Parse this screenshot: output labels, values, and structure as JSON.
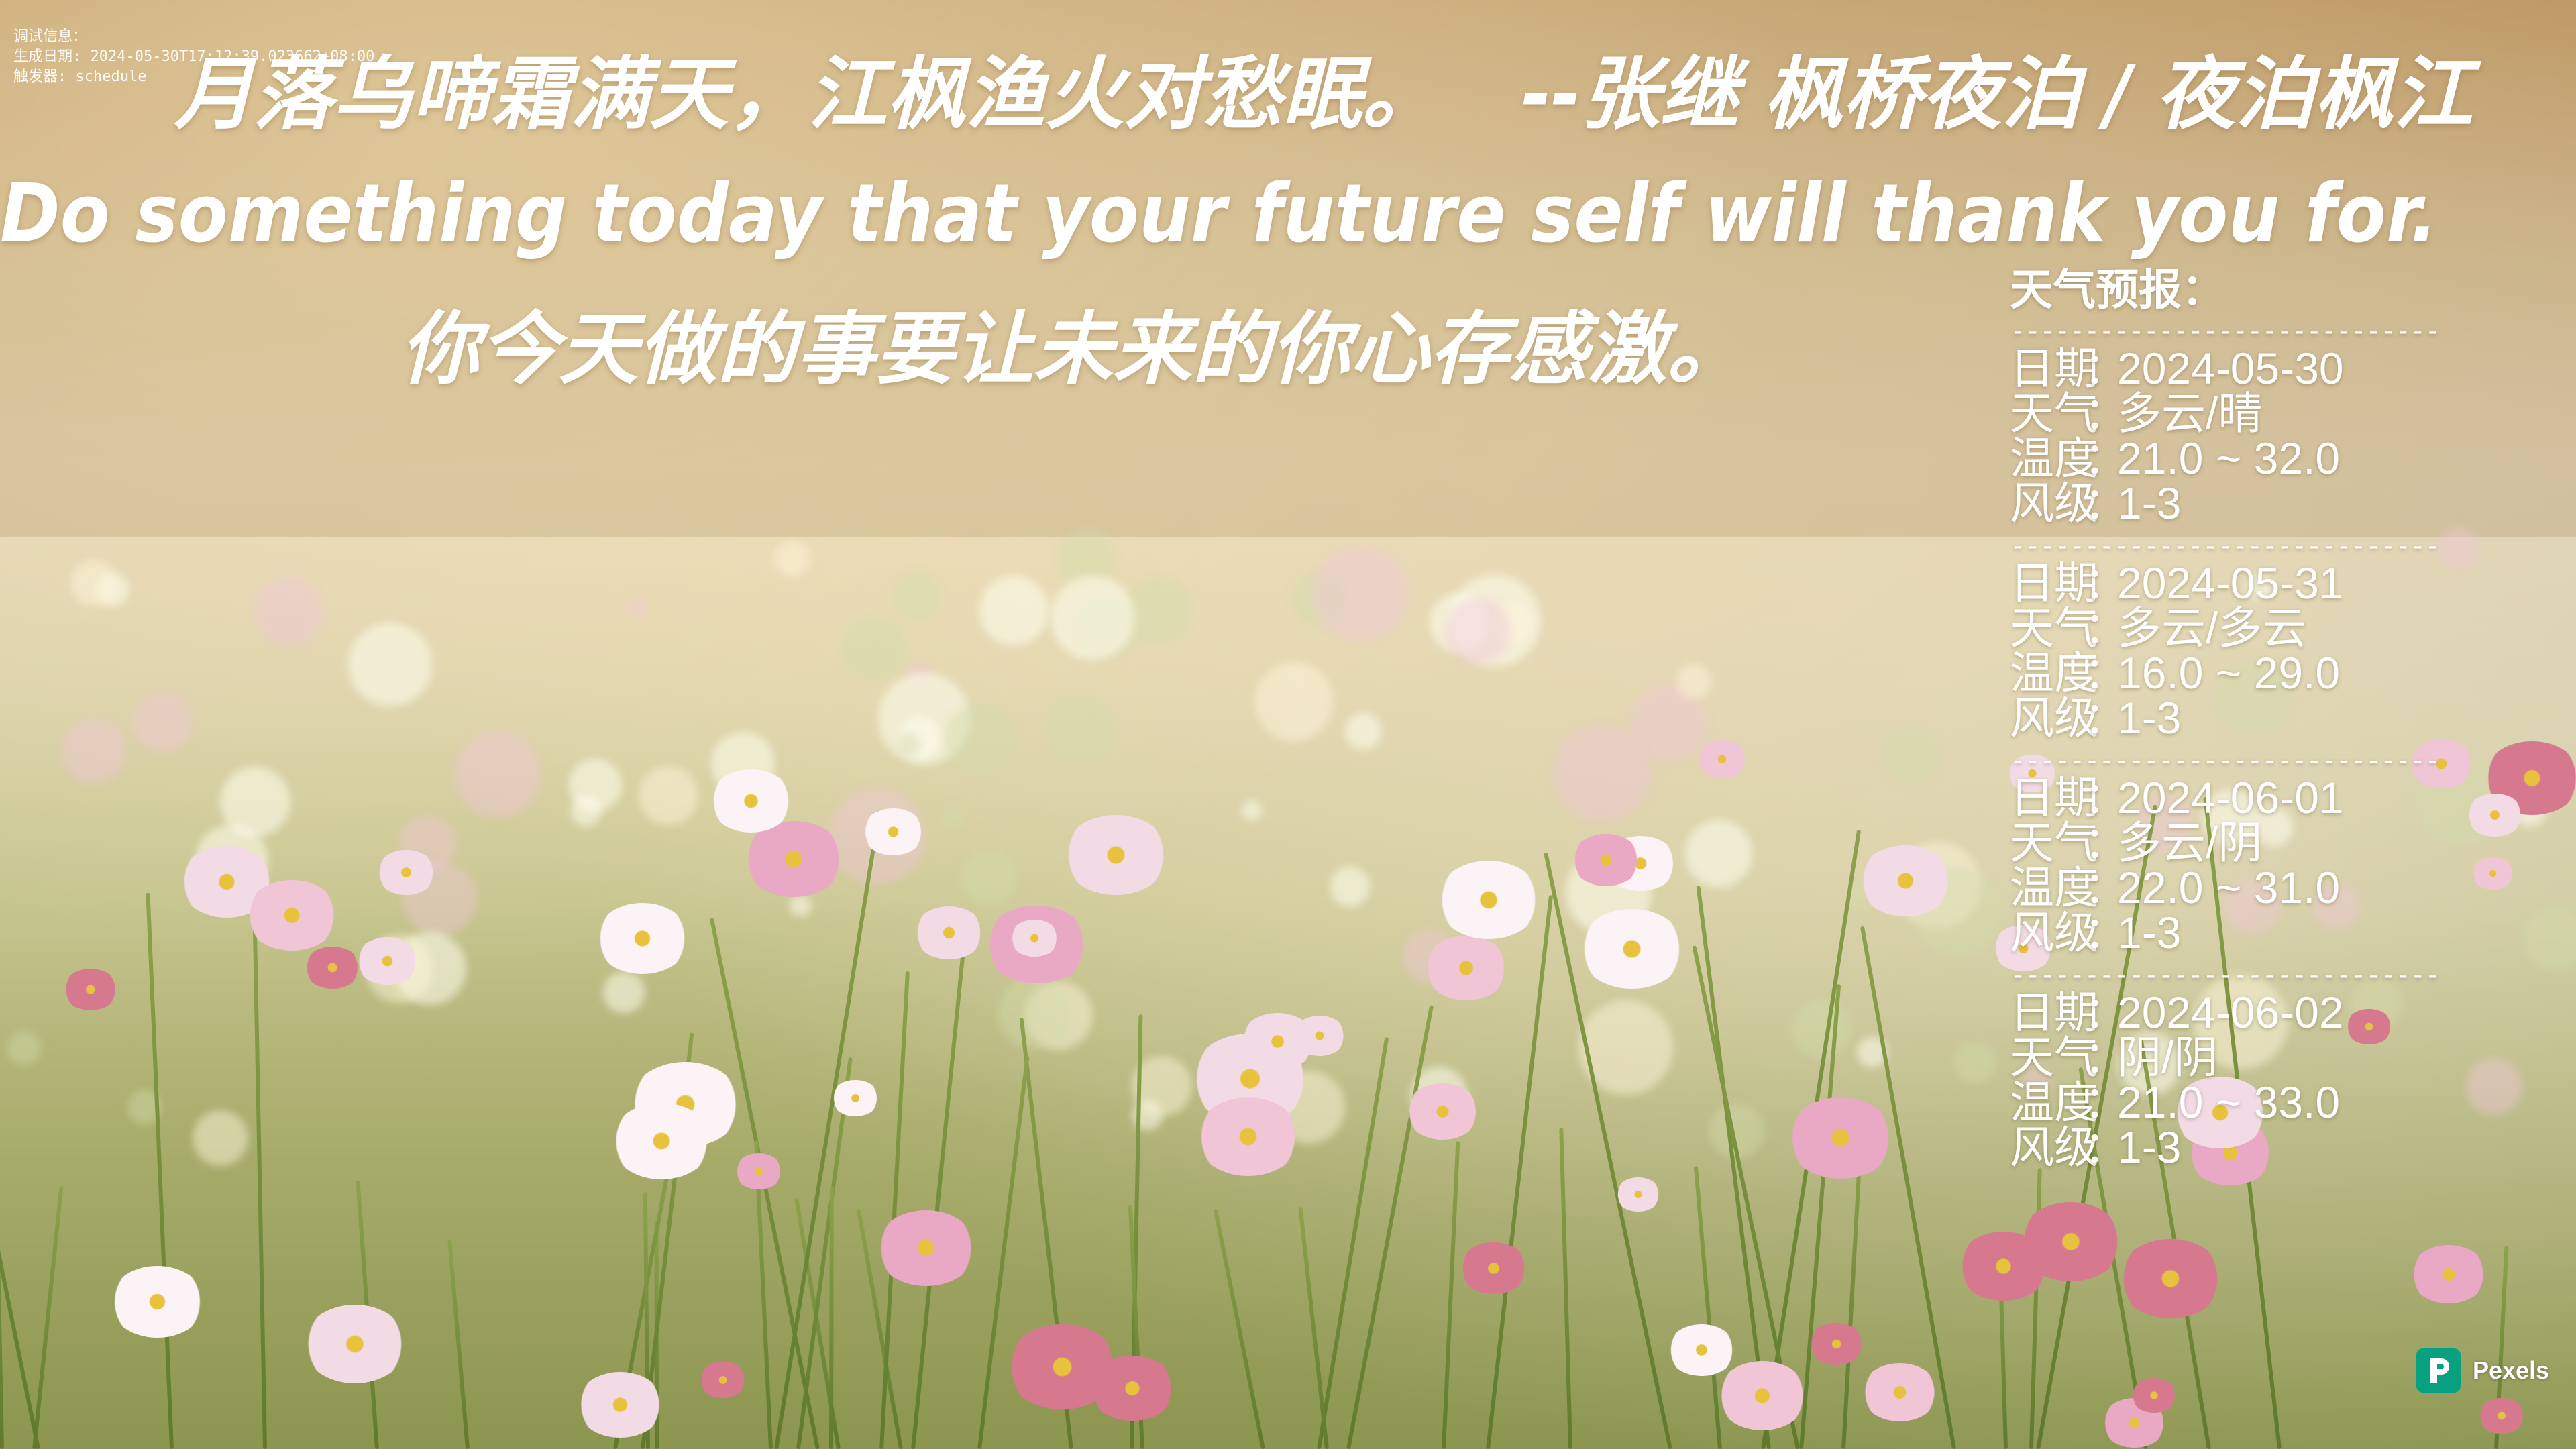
{
  "debug": {
    "line1": "调试信息：",
    "line2": "生成日期: 2024-05-30T17:12:39.023662+08:00",
    "line3": "触发器: schedule"
  },
  "quote": {
    "poem": "月落乌啼霜满天，江枫渔火对愁眠。",
    "attribution": "--张继 枫桥夜泊 / 夜泊枫江",
    "english": "Do something today that your future self will thank you for.",
    "chinese": "你今天做的事要让未来的你心存感激。"
  },
  "weather": {
    "title": "天气预报：",
    "divider": "------------------------------",
    "labels": {
      "date": "日期",
      "weather": "天气",
      "temp": "温度",
      "wind": "风级",
      "colon": "："
    },
    "days": [
      {
        "date": "2024-05-30",
        "weather": "多云/晴",
        "temp": "21.0 ~ 32.0",
        "wind": "1-3"
      },
      {
        "date": "2024-05-31",
        "weather": "多云/多云",
        "temp": "16.0 ~ 29.0",
        "wind": "1-3"
      },
      {
        "date": "2024-06-01",
        "weather": "多云/阴",
        "temp": "22.0 ~ 31.0",
        "wind": "1-3"
      },
      {
        "date": "2024-06-02",
        "weather": "阴/阴",
        "temp": "21.0 ~ 33.0",
        "wind": "1-3"
      }
    ]
  },
  "credit": {
    "name": "Pexels",
    "icon": "pexels-logo-icon",
    "color": "#07a081"
  }
}
